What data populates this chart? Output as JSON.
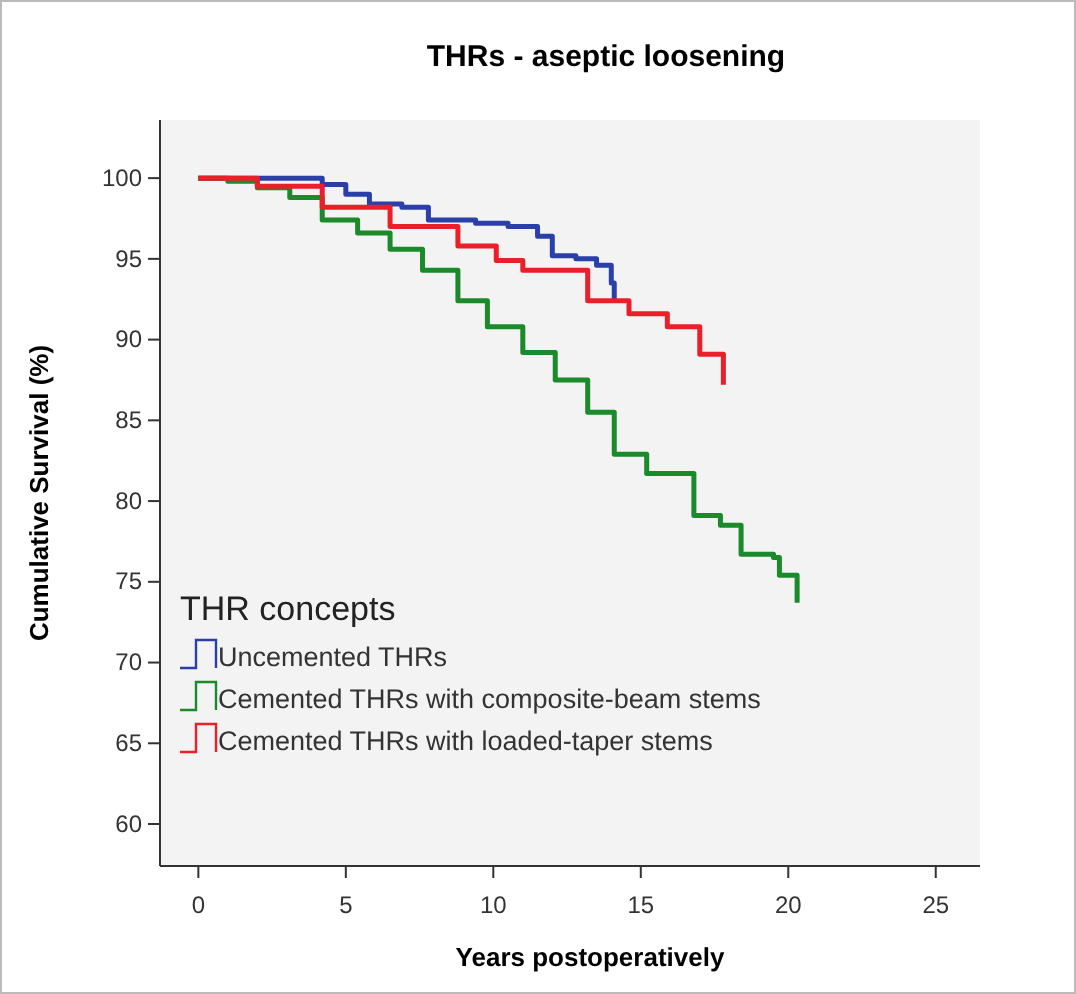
{
  "chart_data": {
    "type": "step",
    "title": "THRs - aseptic loosening",
    "xlabel": "Years postoperatively",
    "ylabel": "Cumulative Survival (%)",
    "legend_title": "THR concepts",
    "legend": "bottom left",
    "grid": false,
    "xlim": [
      -1.3,
      26.5
    ],
    "ylim": [
      57.4,
      103.6
    ],
    "xticks": [
      0,
      5,
      10,
      15,
      20,
      25
    ],
    "yticks": [
      60,
      65,
      70,
      75,
      80,
      85,
      90,
      95,
      100
    ],
    "series": [
      {
        "name": "Uncemented THRs",
        "color": "#2b3fa8",
        "x": [
          0,
          4.2,
          5,
          5.8,
          6.9,
          7.8,
          9.4,
          10.5,
          11.5,
          12,
          12.8,
          13.5,
          14,
          14.1
        ],
        "values": [
          100,
          99.6,
          99,
          98.4,
          98.2,
          97.4,
          97.2,
          97,
          96.4,
          95.2,
          95,
          94.6,
          93.5,
          92.4
        ]
      },
      {
        "name": "Cemented THRs with composite-beam stems",
        "color": "#1a8a2a",
        "x": [
          0,
          1,
          2,
          3.1,
          4.2,
          5.4,
          6.5,
          7.6,
          8.8,
          9.8,
          11,
          12.1,
          13.2,
          14.1,
          15.2,
          16.6,
          16.8,
          17.7,
          18.4,
          19.5,
          19.7,
          20.3
        ],
        "values": [
          100,
          99.8,
          99.4,
          98.8,
          97.4,
          96.6,
          95.6,
          94.3,
          92.4,
          90.8,
          89.2,
          87.5,
          85.5,
          82.9,
          81.7,
          81.7,
          79.1,
          78.5,
          76.7,
          76.5,
          75.4,
          73.7
        ]
      },
      {
        "name": "Cemented THRs with loaded-taper stems",
        "color": "#e8202a",
        "x": [
          0,
          0.9,
          2,
          4.2,
          6.5,
          8.8,
          10.1,
          11,
          13.2,
          14.6,
          15.9,
          17,
          17.8
        ],
        "values": [
          100,
          100,
          99.5,
          98.2,
          97,
          95.8,
          94.9,
          94.3,
          92.4,
          91.6,
          90.8,
          89.1,
          87.2
        ]
      }
    ]
  }
}
